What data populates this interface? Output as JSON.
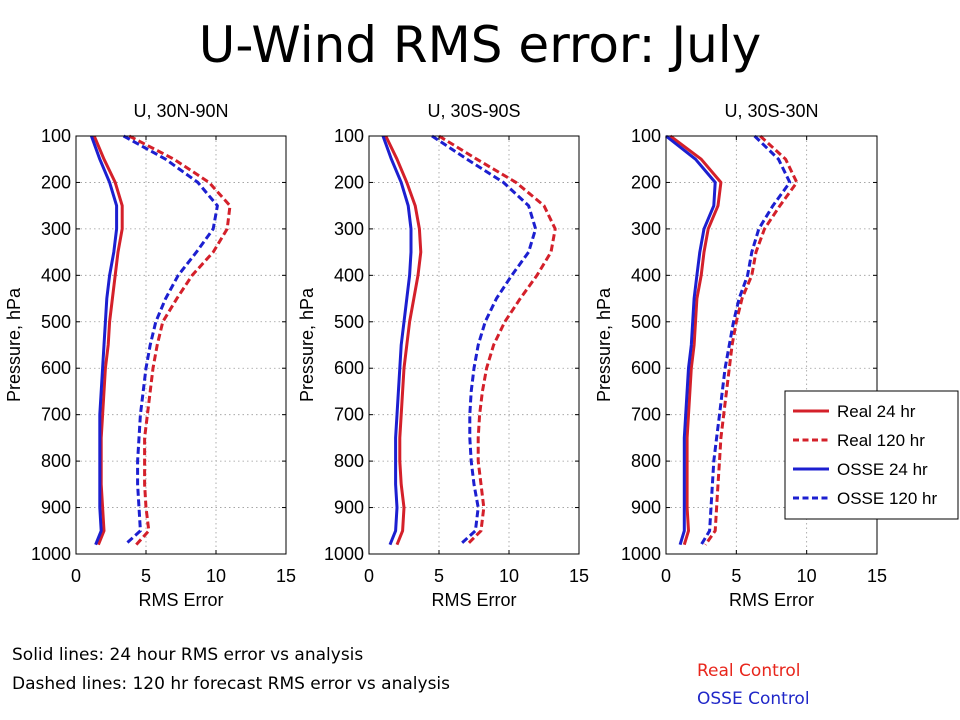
{
  "slide": {
    "title": "U-Wind RMS error: July",
    "notes": [
      "Solid lines: 24 hour RMS error vs analysis",
      "Dashed lines: 120 hr forecast RMS error vs analysis"
    ],
    "controls": [
      {
        "label": "Real Control",
        "color": "#e8261c"
      },
      {
        "label": "OSSE Control",
        "color": "#2027c8"
      }
    ]
  },
  "colors": {
    "real": "#d4202a",
    "osse": "#1c1fd0"
  },
  "chart_data": [
    {
      "type": "line",
      "title": "U, 30N-90N",
      "xlabel": "RMS Error",
      "ylabel": "Pressure, hPa",
      "xlim": [
        0,
        15
      ],
      "ylim": [
        100,
        1000
      ],
      "y_inverted": true,
      "grid": true,
      "xticks": [
        0,
        5,
        10,
        15
      ],
      "yticks": [
        100,
        200,
        300,
        400,
        500,
        600,
        700,
        800,
        900,
        1000
      ],
      "y": [
        100,
        150,
        200,
        250,
        300,
        350,
        400,
        450,
        500,
        550,
        600,
        650,
        700,
        750,
        800,
        850,
        900,
        950,
        980
      ],
      "series": [
        {
          "name": "Real 24 hr",
          "style": "solid",
          "color": "real",
          "x": [
            1.3,
            2.0,
            2.8,
            3.3,
            3.3,
            3.0,
            2.8,
            2.6,
            2.4,
            2.3,
            2.1,
            2.0,
            1.9,
            1.8,
            1.8,
            1.8,
            1.9,
            2.0,
            1.6
          ]
        },
        {
          "name": "Real 120 hr",
          "style": "dashed",
          "color": "real",
          "x": [
            3.8,
            7.0,
            9.5,
            11.0,
            10.8,
            9.8,
            8.3,
            7.2,
            6.2,
            5.8,
            5.5,
            5.3,
            5.1,
            4.9,
            4.9,
            4.9,
            5.0,
            5.2,
            4.3
          ]
        },
        {
          "name": "OSSE 24 hr",
          "style": "solid",
          "color": "osse",
          "x": [
            1.1,
            1.7,
            2.4,
            2.9,
            2.9,
            2.7,
            2.4,
            2.2,
            2.1,
            2.0,
            1.9,
            1.8,
            1.7,
            1.7,
            1.7,
            1.7,
            1.7,
            1.8,
            1.4
          ]
        },
        {
          "name": "OSSE 120 hr",
          "style": "dashed",
          "color": "osse",
          "x": [
            3.4,
            6.4,
            8.7,
            10.1,
            9.8,
            8.6,
            7.3,
            6.4,
            5.7,
            5.3,
            5.0,
            4.8,
            4.6,
            4.5,
            4.4,
            4.4,
            4.5,
            4.6,
            3.5
          ]
        }
      ]
    },
    {
      "type": "line",
      "title": "U, 30S-90S",
      "xlabel": "RMS Error",
      "ylabel": "Pressure, hPa",
      "xlim": [
        0,
        15
      ],
      "ylim": [
        100,
        1000
      ],
      "y_inverted": true,
      "grid": true,
      "xticks": [
        0,
        5,
        10,
        15
      ],
      "yticks": [
        100,
        200,
        300,
        400,
        500,
        600,
        700,
        800,
        900,
        1000
      ],
      "y": [
        100,
        150,
        200,
        250,
        300,
        350,
        400,
        450,
        500,
        550,
        600,
        650,
        700,
        750,
        800,
        850,
        900,
        950,
        980
      ],
      "series": [
        {
          "name": "Real 24 hr",
          "style": "solid",
          "color": "real",
          "x": [
            1.2,
            2.0,
            2.7,
            3.3,
            3.6,
            3.7,
            3.5,
            3.2,
            2.9,
            2.7,
            2.5,
            2.4,
            2.3,
            2.2,
            2.2,
            2.3,
            2.5,
            2.4,
            2.0
          ]
        },
        {
          "name": "Real 120 hr",
          "style": "dashed",
          "color": "real",
          "x": [
            5.0,
            7.7,
            10.5,
            12.5,
            13.3,
            13.0,
            12.0,
            10.8,
            9.7,
            8.9,
            8.4,
            8.1,
            7.9,
            7.8,
            7.8,
            8.0,
            8.2,
            8.0,
            7.0
          ]
        },
        {
          "name": "OSSE 24 hr",
          "style": "solid",
          "color": "osse",
          "x": [
            1.0,
            1.6,
            2.3,
            2.8,
            3.0,
            3.0,
            2.9,
            2.7,
            2.5,
            2.3,
            2.2,
            2.1,
            2.0,
            1.9,
            1.9,
            1.9,
            2.0,
            1.9,
            1.5
          ]
        },
        {
          "name": "OSSE 120 hr",
          "style": "dashed",
          "color": "osse",
          "x": [
            4.5,
            7.0,
            9.6,
            11.4,
            11.9,
            11.4,
            10.2,
            9.1,
            8.3,
            7.8,
            7.5,
            7.3,
            7.2,
            7.2,
            7.3,
            7.5,
            7.8,
            7.6,
            6.5
          ]
        }
      ]
    },
    {
      "type": "line",
      "title": "U, 30S-30N",
      "xlabel": "RMS Error",
      "ylabel": "Pressure, hPa",
      "xlim": [
        0,
        15
      ],
      "ylim": [
        100,
        1000
      ],
      "y_inverted": true,
      "grid": true,
      "xticks": [
        0,
        5,
        10,
        15
      ],
      "yticks": [
        100,
        200,
        300,
        400,
        500,
        600,
        700,
        800,
        900,
        1000
      ],
      "y": [
        100,
        150,
        200,
        250,
        300,
        350,
        400,
        450,
        500,
        550,
        600,
        650,
        700,
        750,
        800,
        850,
        900,
        950,
        980
      ],
      "series": [
        {
          "name": "Real 24 hr",
          "style": "solid",
          "color": "real",
          "x": [
            0.3,
            2.5,
            3.9,
            3.7,
            3.0,
            2.7,
            2.5,
            2.2,
            2.1,
            2.0,
            1.8,
            1.7,
            1.6,
            1.5,
            1.5,
            1.5,
            1.5,
            1.6,
            1.3
          ]
        },
        {
          "name": "Real 120 hr",
          "style": "dashed",
          "color": "real",
          "x": [
            6.7,
            8.5,
            9.3,
            8.1,
            7.0,
            6.4,
            6.1,
            5.4,
            5.0,
            4.7,
            4.5,
            4.3,
            4.1,
            3.9,
            3.8,
            3.7,
            3.6,
            3.5,
            2.8
          ]
        },
        {
          "name": "OSSE 24 hr",
          "style": "solid",
          "color": "osse",
          "x": [
            0.0,
            2.1,
            3.5,
            3.4,
            2.7,
            2.4,
            2.2,
            2.0,
            1.9,
            1.8,
            1.6,
            1.5,
            1.4,
            1.3,
            1.3,
            1.3,
            1.3,
            1.3,
            1.0
          ]
        },
        {
          "name": "OSSE 120 hr",
          "style": "dashed",
          "color": "osse",
          "x": [
            6.3,
            8.0,
            8.8,
            7.6,
            6.6,
            6.1,
            5.8,
            5.2,
            4.8,
            4.5,
            4.2,
            4.0,
            3.8,
            3.6,
            3.4,
            3.3,
            3.2,
            3.1,
            2.5
          ]
        }
      ],
      "legend": {
        "position": "lower-right",
        "entries": [
          {
            "label": "Real 24 hr",
            "style": "solid",
            "color": "real"
          },
          {
            "label": "Real 120 hr",
            "style": "dashed",
            "color": "real"
          },
          {
            "label": "OSSE 24 hr",
            "style": "solid",
            "color": "osse"
          },
          {
            "label": "OSSE 120 hr",
            "style": "dashed",
            "color": "osse"
          }
        ]
      }
    }
  ]
}
